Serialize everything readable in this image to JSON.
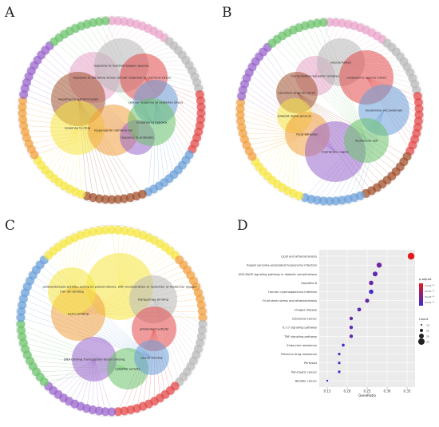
{
  "panels": {
    "A": {
      "letter": "A",
      "terms": [
        {
          "label": "response to oxidative stress",
          "color": "#e8a3c9"
        },
        {
          "label": "response to reactive oxygen species",
          "color": "#b8b8b8"
        },
        {
          "label": "cellular response to chemical stress",
          "color": "#e34a4a"
        },
        {
          "label": "cellular response to oxidative stress",
          "color": "#6a9fd8"
        },
        {
          "label": "response to nutrient levels",
          "color": "#a0522d"
        },
        {
          "label": "response to drug",
          "color": "#f5e642"
        },
        {
          "label": "response to cadmium ion",
          "color": "#f0a040"
        },
        {
          "label": "response to antibiotic",
          "color": "#9966cc"
        },
        {
          "label": "response to hypoxia",
          "color": "#6cc26c"
        }
      ]
    },
    "B": {
      "letter": "B",
      "terms": [
        {
          "label": "transcription regulator complex",
          "color": "#e8a3c9"
        },
        {
          "label": "vesicle lumen",
          "color": "#b8b8b8"
        },
        {
          "label": "cytoplasmic vesicle lumen",
          "color": "#e34a4a"
        },
        {
          "label": "secretory granule lumen",
          "color": "#a0522d"
        },
        {
          "label": "membrane microdomain",
          "color": "#6a9fd8"
        },
        {
          "label": "platelet alpha granule",
          "color": "#f5e642"
        },
        {
          "label": "focal adhesion",
          "color": "#f0a040"
        },
        {
          "label": "membrane region",
          "color": "#9966cc"
        },
        {
          "label": "membrane raft",
          "color": "#6cc26c"
        }
      ]
    },
    "C": {
      "letter": "C",
      "terms": [
        {
          "label": "oxidoreductase activity, acting on paired donors, with incorporation or reduction of molecular oxygen",
          "color": "#f5e642"
        },
        {
          "label": "heme binding",
          "color": "#f0a040"
        },
        {
          "label": "tetrapyrrole binding",
          "color": "#b8b8b8"
        },
        {
          "label": "antioxidant activity",
          "color": "#e34a4a"
        },
        {
          "label": "DNA-binding transcription factor binding",
          "color": "#9966cc"
        },
        {
          "label": "cytokine activity",
          "color": "#6cc26c"
        },
        {
          "label": "amide binding",
          "color": "#6a9fd8"
        },
        {
          "label": "iron ion binding",
          "color": "#f5e642"
        }
      ]
    },
    "D": {
      "letter": "D",
      "chart_data": {
        "type": "scatter",
        "categories": [
          "Lipid and atherosclerosis",
          "Kaposi sarcoma-associated herpesvirus infection",
          "AGE-RAGE signaling pathway in diabetic complications",
          "Hepatitis B",
          "Human cytomegalovirus infection",
          "Fluid shear stress and atherosclerosis",
          "Chagas disease",
          "Colorectal cancer",
          "IL-17 signaling pathway",
          "TNF signaling pathway",
          "Endocrine resistance",
          "Platinum drug resistance",
          "Pertussis",
          "Pancreatic cancer",
          "Bladder cancer"
        ],
        "x": [
          0.36,
          0.28,
          0.27,
          0.26,
          0.26,
          0.25,
          0.23,
          0.21,
          0.21,
          0.21,
          0.19,
          0.18,
          0.18,
          0.18,
          0.15
        ],
        "count": [
          26,
          21,
          20,
          19,
          19,
          18,
          17,
          16,
          16,
          16,
          14,
          13,
          13,
          13,
          11
        ],
        "p_adjust": [
          1e-20,
          1e-12,
          1e-11,
          2e-12,
          5e-10,
          4e-12,
          3e-11,
          2e-12,
          3e-11,
          1e-11,
          2e-09,
          4e-10,
          5e-10,
          5e-10,
          3e-09
        ],
        "xlabel": "GeneRatio",
        "xticks": [
          "0.15",
          "0.20",
          "0.25",
          "0.30",
          "0.35"
        ],
        "xlim": [
          0.13,
          0.37
        ],
        "legend": {
          "color_title": "p.adjust",
          "color_labels": [
            "1×10⁻¹⁰",
            "2×10⁻¹⁰",
            "3×10⁻¹⁰",
            "4×10⁻¹⁰"
          ],
          "size_title": "Count",
          "size_labels": [
            "10",
            "15",
            "20",
            "25"
          ],
          "placement": "right"
        },
        "colors": {
          "low": "#e41a1c",
          "high": "#3b2cd6"
        }
      }
    }
  }
}
